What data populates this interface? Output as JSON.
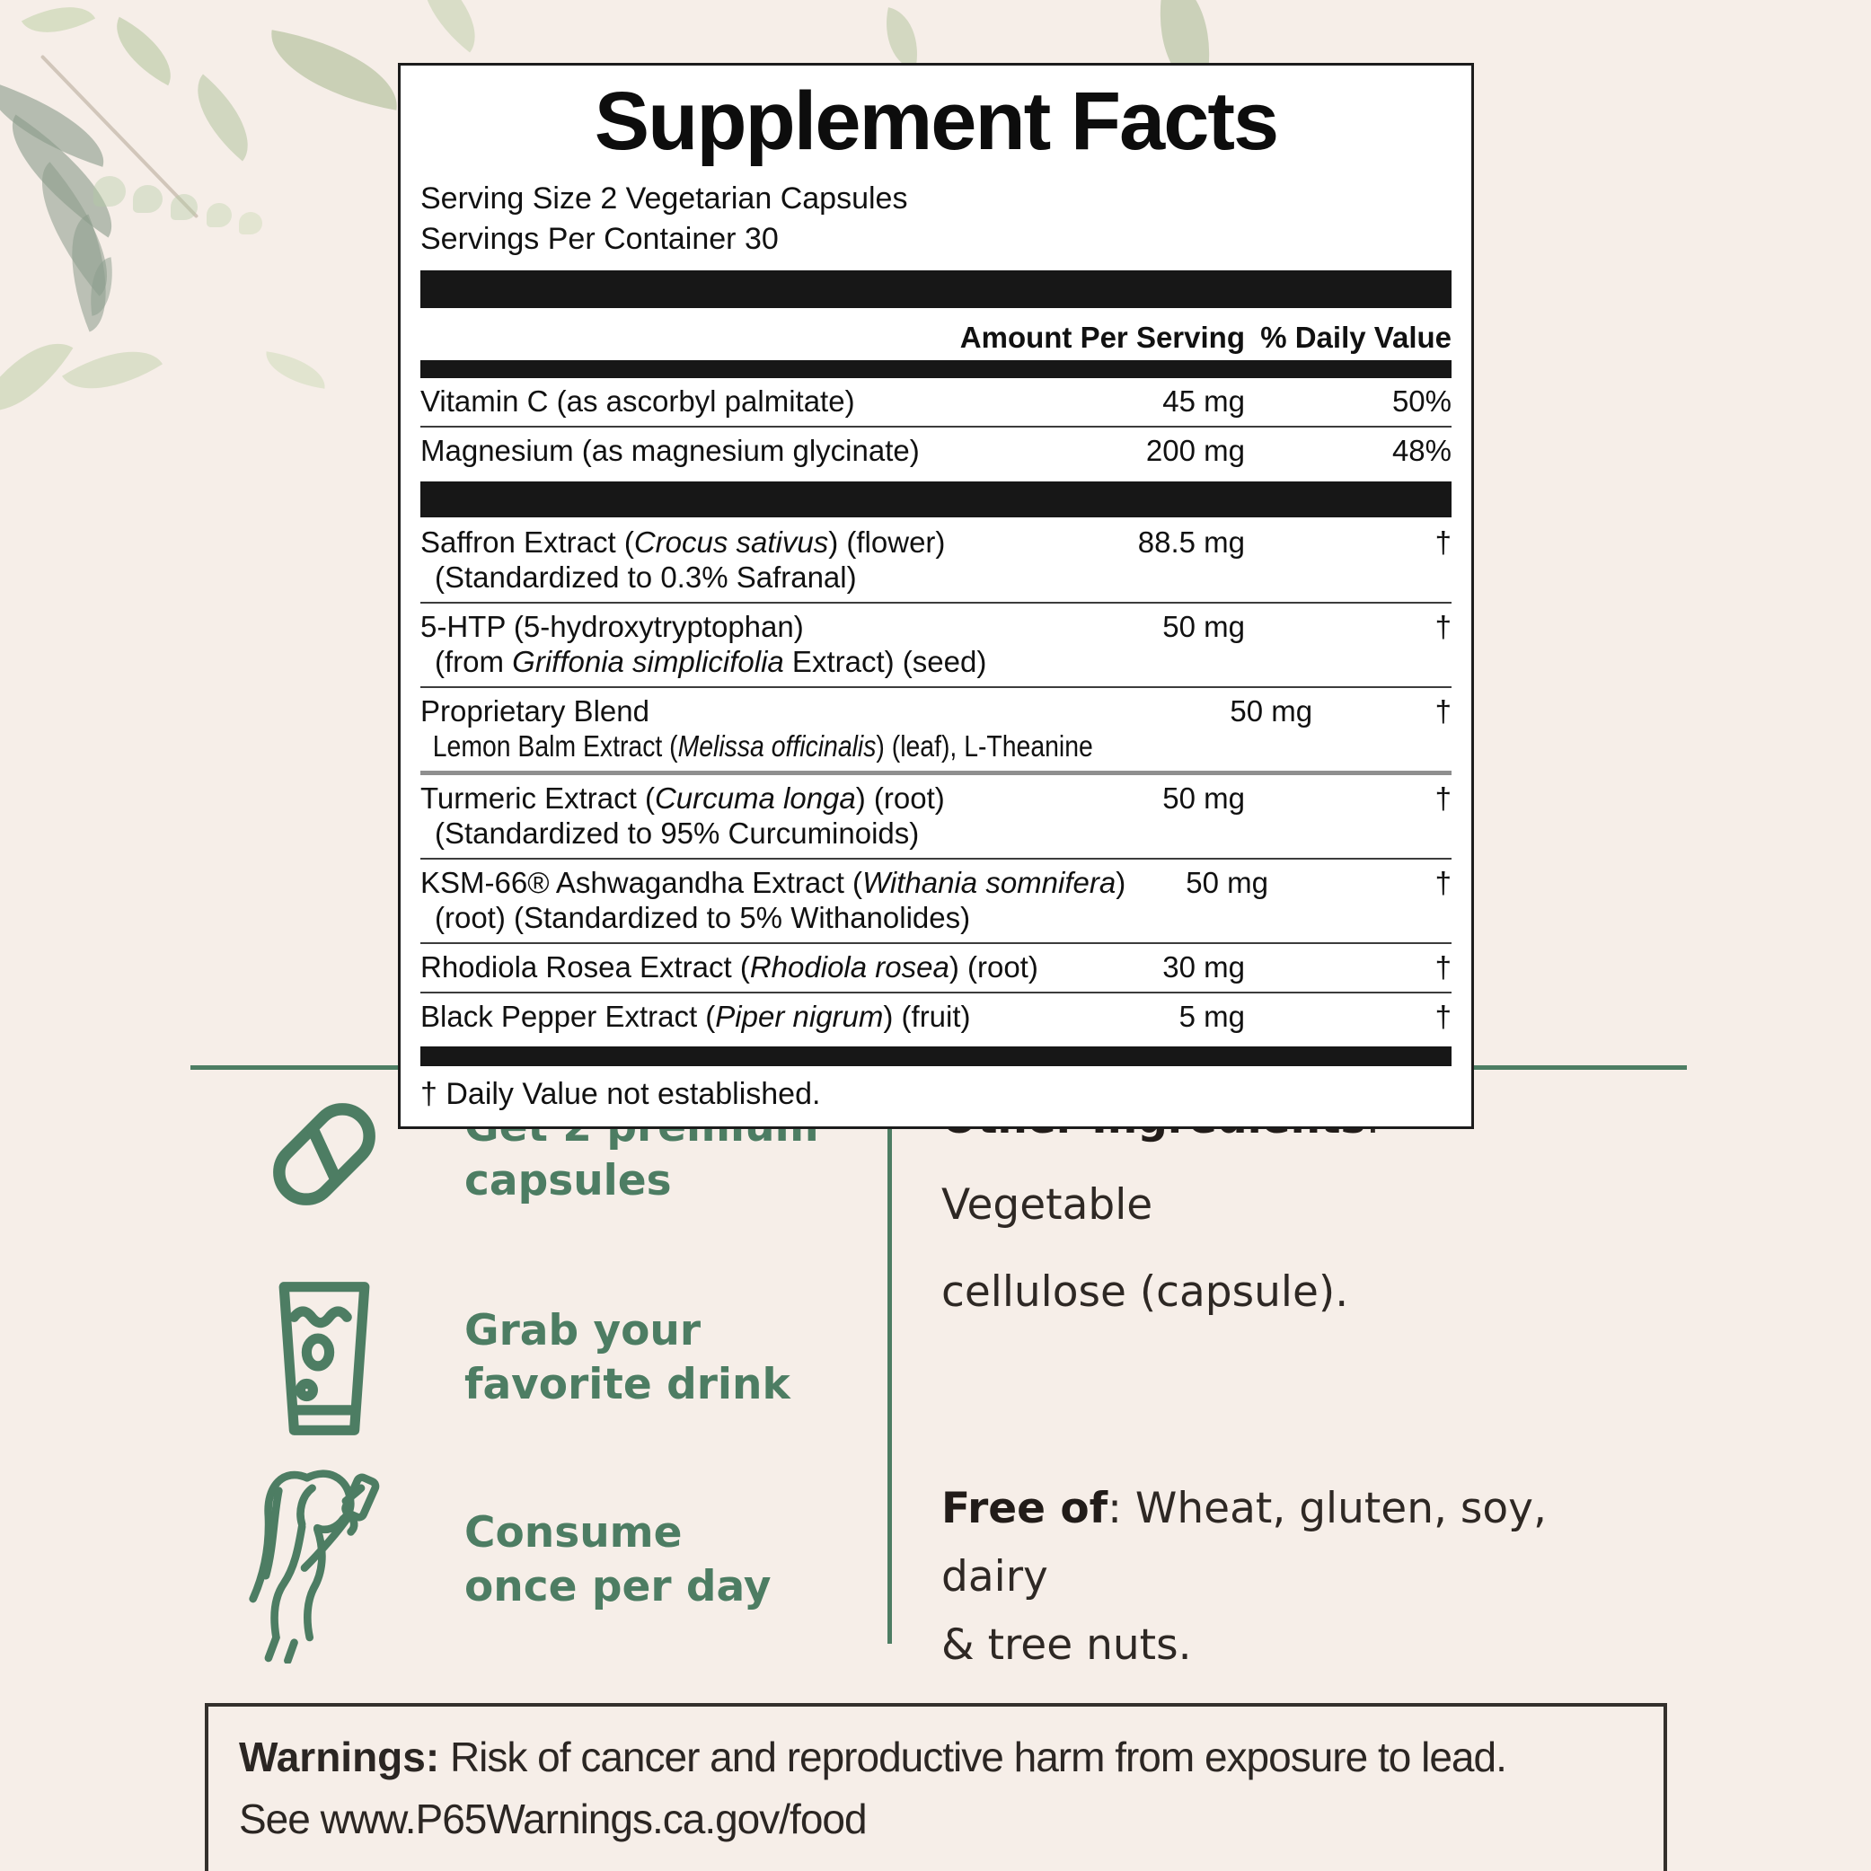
{
  "colors": {
    "background": "#f6eee8",
    "accent_green": "#4d7d63",
    "panel_border": "#1c1c1c",
    "bar_black": "#171717",
    "warning_border": "#34302c"
  },
  "panel": {
    "title": "Supplement Facts",
    "serving_size": "Serving Size 2 Vegetarian Capsules",
    "servings_per_container": "Servings Per Container 30",
    "col_amount": "Amount Per Serving",
    "col_dv": "% Daily Value",
    "rows_main": [
      {
        "name": "Vitamin C (as ascorbyl palmitate)",
        "amount": "45 mg",
        "dv": "50%"
      },
      {
        "name": "Magnesium (as magnesium glycinate)",
        "amount": "200 mg",
        "dv": "48%"
      }
    ],
    "rows_herbal": [
      {
        "name": "Saffron Extract (*Crocus sativus*) (flower)",
        "sub": "(Standardized to 0.3% Safranal)",
        "amount": "88.5 mg",
        "dv": "†"
      },
      {
        "name": "5-HTP (5-hydroxytryptophan)",
        "sub": "(from *Griffonia simplicifolia* Extract) (seed)",
        "amount": "50 mg",
        "dv": "†"
      },
      {
        "name": "Proprietary Blend",
        "sub": "Lemon Balm Extract (*Melissa officinalis*) (leaf), L-Theanine",
        "sub_condensed": true,
        "amount": "50 mg",
        "dv": "†"
      },
      {
        "name": "Turmeric Extract (*Curcuma longa*) (root)",
        "sub": "(Standardized to 95% Curcuminoids)",
        "thick_top": true,
        "amount": "50 mg",
        "dv": "†"
      },
      {
        "name": "KSM-66® Ashwagandha Extract (*Withania somnifera*)",
        "sub": "(root) (Standardized to 5% Withanolides)",
        "amount": "50 mg",
        "dv": "†"
      },
      {
        "name": "Rhodiola Rosea Extract (*Rhodiola rosea*) (root)",
        "amount": "30 mg",
        "dv": "†"
      },
      {
        "name": "Black Pepper Extract (*Piper nigrum*) (fruit)",
        "amount": "5 mg",
        "dv": "†"
      }
    ],
    "footnote": "† Daily Value not established."
  },
  "benefits": [
    {
      "icon": "capsule-icon",
      "lines": [
        "Get 2 premium",
        "capsules"
      ]
    },
    {
      "icon": "glass-icon",
      "lines": [
        "Grab your",
        "favorite drink"
      ]
    },
    {
      "icon": "woman-drinking-icon",
      "lines": [
        "Consume",
        "once per day"
      ]
    }
  ],
  "other_ingredients": {
    "label": "Other Ingredients",
    "line1": ": Vegetable",
    "line2": "cellulose (capsule)."
  },
  "free_of": {
    "label": "Free of",
    "line1": ": Wheat, gluten, soy, dairy",
    "line2": "& tree nuts."
  },
  "warnings": {
    "label": "Warnings:",
    "line1": " Risk of cancer and reproductive harm from exposure to lead.",
    "line2": "See www.P65Warnings.ca.gov/food"
  }
}
